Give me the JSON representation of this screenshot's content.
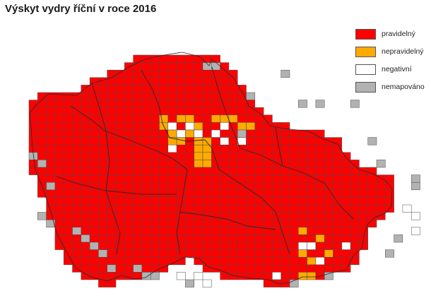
{
  "title": "Výskyt vydry říční v roce 2016",
  "colors": {
    "pravidelny": "#ff0000",
    "nepravidelny": "#ffaa00",
    "negativni": "#ffffff",
    "nemapovano": "#b2b2b2",
    "cell_border": "#4a4a4a",
    "region_border": "#2a2a2a"
  },
  "legend": [
    {
      "key": "pravidelny",
      "label": "pravidelný"
    },
    {
      "key": "nepravidelny",
      "label": "nepravidelný"
    },
    {
      "key": "negativni",
      "label": "negativní"
    },
    {
      "key": "nemapovano",
      "label": "nemapováno"
    }
  ],
  "map": {
    "subject": "Czech Republic grid mapping, otter occurrence",
    "default_category": "pravidelny"
  }
}
